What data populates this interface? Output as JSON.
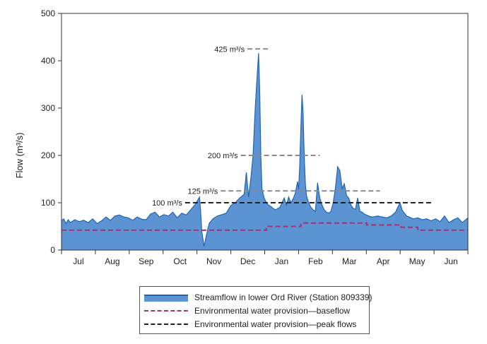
{
  "chart_data": {
    "type": "area",
    "ylabel": "Flow (m³/s)",
    "xlabel": "",
    "ylim": [
      0,
      500
    ],
    "y_ticks": [
      0,
      100,
      200,
      300,
      400,
      500
    ],
    "x_domain_days": [
      0,
      365
    ],
    "months": [
      "Jul",
      "Aug",
      "Sep",
      "Oct",
      "Nov",
      "Dec",
      "Jan",
      "Feb",
      "Mar",
      "Apr",
      "May",
      "Jun"
    ],
    "colors": {
      "streamflow_fill": "#5b93d3",
      "streamflow_line": "#2264b4",
      "baseflow": "#a8326e",
      "peak": "#222222",
      "reference": "#8a8a8a"
    },
    "series": [
      {
        "name": "Streamflow in lower Ord River (Station 809339)",
        "kind": "area",
        "x_day": [
          0,
          2,
          4,
          6,
          8,
          12,
          16,
          20,
          24,
          28,
          32,
          36,
          40,
          44,
          48,
          52,
          56,
          60,
          64,
          68,
          72,
          76,
          80,
          84,
          88,
          92,
          96,
          100,
          104,
          108,
          112,
          116,
          120,
          124,
          125,
          126,
          128,
          130,
          132,
          133,
          134,
          136,
          140,
          144,
          148,
          152,
          156,
          160,
          164,
          166,
          168,
          170,
          172,
          174,
          176,
          177,
          178,
          179,
          180,
          182,
          184,
          186,
          188,
          190,
          192,
          196,
          200,
          202,
          204,
          206,
          208,
          210,
          212,
          213,
          214,
          215,
          216,
          217,
          218,
          219,
          220,
          222,
          224,
          226,
          228,
          230,
          232,
          234,
          236,
          238,
          240,
          242,
          244,
          246,
          248,
          250,
          252,
          254,
          256,
          258,
          260,
          262,
          264,
          266,
          268,
          270,
          272,
          274,
          276,
          278,
          280,
          284,
          288,
          292,
          296,
          300,
          304,
          306,
          308,
          310,
          312,
          316,
          320,
          324,
          328,
          332,
          336,
          340,
          344,
          348,
          352,
          356,
          360,
          365
        ],
        "y": [
          62,
          66,
          56,
          64,
          58,
          64,
          60,
          63,
          58,
          66,
          56,
          62,
          70,
          63,
          72,
          74,
          70,
          68,
          63,
          70,
          65,
          64,
          76,
          80,
          70,
          75,
          72,
          80,
          68,
          78,
          74,
          85,
          96,
          112,
          80,
          40,
          8,
          30,
          50,
          58,
          60,
          66,
          72,
          75,
          78,
          94,
          100,
          110,
          118,
          164,
          112,
          150,
          200,
          300,
          380,
          416,
          340,
          200,
          130,
          110,
          100,
          95,
          92,
          88,
          85,
          90,
          110,
          95,
          112,
          100,
          108,
          120,
          145,
          128,
          180,
          260,
          328,
          290,
          200,
          140,
          115,
          100,
          90,
          85,
          82,
          142,
          110,
          95,
          85,
          80,
          78,
          82,
          100,
          130,
          176,
          168,
          130,
          140,
          115,
          110,
          95,
          88,
          86,
          110,
          82,
          80,
          76,
          74,
          72,
          70,
          70,
          72,
          70,
          68,
          72,
          80,
          100,
          84,
          78,
          72,
          70,
          66,
          68,
          64,
          66,
          62,
          66,
          60,
          72,
          58,
          64,
          68,
          58,
          68
        ]
      },
      {
        "name": "Environmental water provision—baseflow",
        "kind": "step",
        "steps": [
          {
            "from": 0,
            "to": 184,
            "value": 42
          },
          {
            "from": 184,
            "to": 215,
            "value": 50
          },
          {
            "from": 215,
            "to": 274,
            "value": 57
          },
          {
            "from": 274,
            "to": 305,
            "value": 53
          },
          {
            "from": 305,
            "to": 320,
            "value": 48
          },
          {
            "from": 320,
            "to": 365,
            "value": 42
          }
        ]
      },
      {
        "name": "Environmental water provision—peak flows",
        "kind": "segment",
        "from": 111,
        "to": 333,
        "value": 100
      }
    ],
    "reference_lines": [
      {
        "label": "100 m³/s",
        "value": 100,
        "from": 111,
        "to": 333
      },
      {
        "label": "125 m³/s",
        "value": 125,
        "from": 143,
        "to": 286
      },
      {
        "label": "200 m³/s",
        "value": 200,
        "from": 161,
        "to": 232
      },
      {
        "label": "425 m³/s",
        "value": 425,
        "from": 167,
        "to": 188
      }
    ],
    "grid": false,
    "legend_position": "bottom"
  }
}
